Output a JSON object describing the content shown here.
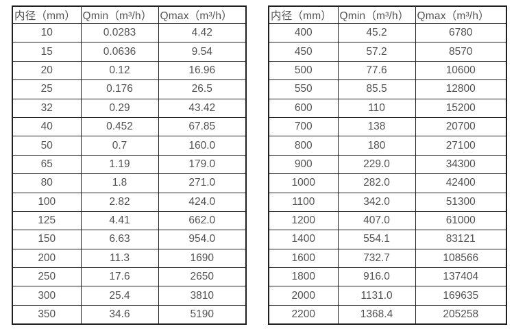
{
  "page": {
    "background_color": "#ffffff",
    "border_color": "#1f1f1f",
    "text_color": "#525252"
  },
  "tables": [
    {
      "name": "flow-range-table-small-diameters",
      "headers": [
        "内径（mm）",
        "Qmin（m³/h）",
        "Qmax（m³/h）"
      ],
      "rows": [
        [
          "10",
          "0.0283",
          "4.42"
        ],
        [
          "15",
          "0.0636",
          "9.54"
        ],
        [
          "20",
          "0.12",
          "16.96"
        ],
        [
          "25",
          "0.176",
          "26.5"
        ],
        [
          "32",
          "0.29",
          "43.42"
        ],
        [
          "40",
          "0.452",
          "67.85"
        ],
        [
          "50",
          "0.7",
          "160.0"
        ],
        [
          "65",
          "1.19",
          "179.0"
        ],
        [
          "80",
          "1.8",
          "271.0"
        ],
        [
          "100",
          "2.82",
          "424.0"
        ],
        [
          "125",
          "4.41",
          "662.0"
        ],
        [
          "150",
          "6.63",
          "954.0"
        ],
        [
          "200",
          "11.3",
          "1690"
        ],
        [
          "250",
          "17.6",
          "2650"
        ],
        [
          "300",
          "25.4",
          "3810"
        ],
        [
          "350",
          "34.6",
          "5190"
        ]
      ]
    },
    {
      "name": "flow-range-table-large-diameters",
      "headers": [
        "内径（mm）",
        "Qmin（m³/h）",
        "Qmax（m³/h）"
      ],
      "rows": [
        [
          "400",
          "45.2",
          "6780"
        ],
        [
          "450",
          "57.2",
          "8570"
        ],
        [
          "500",
          "77.6",
          "10600"
        ],
        [
          "550",
          "85.5",
          "12800"
        ],
        [
          "600",
          "110",
          "15200"
        ],
        [
          "700",
          "138",
          "20700"
        ],
        [
          "800",
          "180",
          "27100"
        ],
        [
          "900",
          "229.0",
          "34300"
        ],
        [
          "1000",
          "282.0",
          "42400"
        ],
        [
          "1100",
          "342.0",
          "51300"
        ],
        [
          "1200",
          "407.0",
          "61000"
        ],
        [
          "1400",
          "554.1",
          "83121"
        ],
        [
          "1600",
          "732.7",
          "108566"
        ],
        [
          "1800",
          "916.0",
          "137404"
        ],
        [
          "2000",
          "1131.0",
          "169635"
        ],
        [
          "2200",
          "1368.4",
          "205258"
        ]
      ]
    }
  ]
}
